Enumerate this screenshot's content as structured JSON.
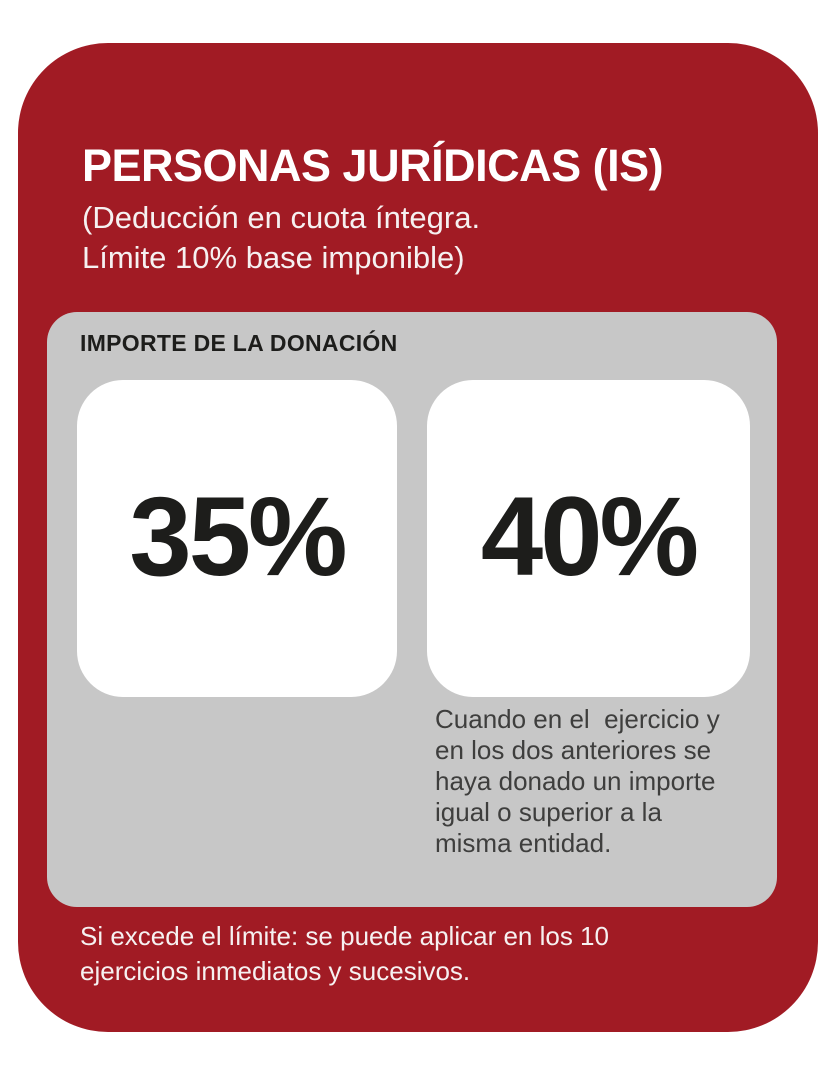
{
  "infographic": {
    "title": "PERSONAS JURÍDICAS (IS)",
    "subtitle_line1": "(Deducción en cuota íntegra.",
    "subtitle_line2": "Límite 10% base imponible)",
    "panel": {
      "header": "IMPORTE DE LA DONACIÓN",
      "cards": [
        {
          "value": "35%"
        },
        {
          "value": "40%",
          "note": "Cuando en el  ejercicio y\nen los dos anteriores se\nhaya donado un importe\nigual o superior a la\nmisma entidad."
        }
      ]
    },
    "footer_note": "Si excede el límite: se puede aplicar en los 10\nejercicios inmediatos y sucesivos.",
    "colors": {
      "accent_red": "#A11B24",
      "panel_gray": "#C7C7C7",
      "text_dark": "#1D1D1B",
      "note_gray": "#3E3E3D",
      "text_light": "#F6F1F1"
    }
  }
}
